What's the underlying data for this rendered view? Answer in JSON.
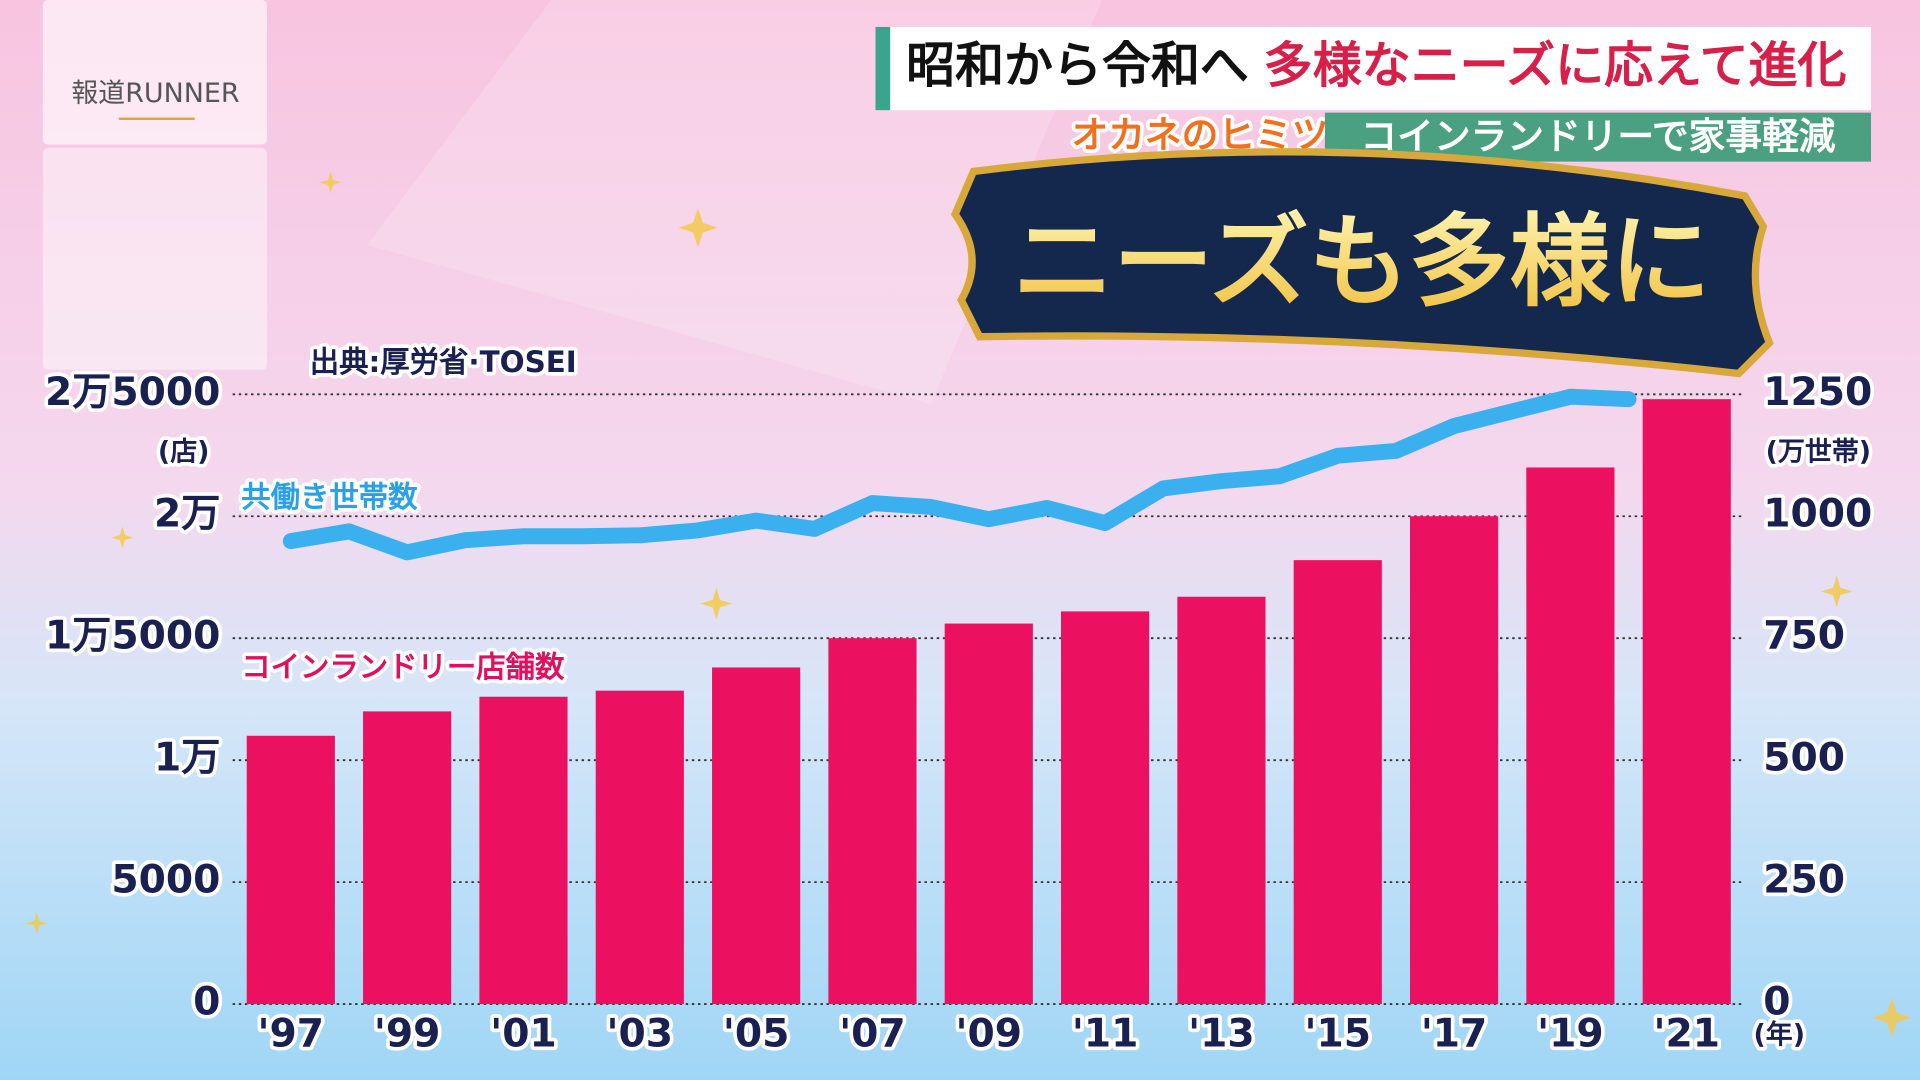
{
  "header": {
    "logo": "報道RUNNER",
    "title_lead": "昭和から令和へ",
    "title_main": "多様なニーズに応えて進化",
    "corner": "オカネのヒミツ",
    "subtitle": "コインランドリーで家事軽減",
    "banner": "ニーズも多様に"
  },
  "chart_data": {
    "type": "bar",
    "source": "出典:厚労省·TOSEI",
    "y_unit": "(店)",
    "y2_unit": "(万世帯)",
    "x_unit": "(年)",
    "xlim": [
      1996,
      2022
    ],
    "xticks": [
      {
        "value": 1997,
        "label": "'97"
      },
      {
        "value": 1999,
        "label": "'99"
      },
      {
        "value": 2001,
        "label": "'01"
      },
      {
        "value": 2003,
        "label": "'03"
      },
      {
        "value": 2005,
        "label": "'05"
      },
      {
        "value": 2007,
        "label": "'07"
      },
      {
        "value": 2009,
        "label": "'09"
      },
      {
        "value": 2011,
        "label": "'11"
      },
      {
        "value": 2013,
        "label": "'13"
      },
      {
        "value": 2015,
        "label": "'15"
      },
      {
        "value": 2017,
        "label": "'17"
      },
      {
        "value": 2019,
        "label": "'19"
      },
      {
        "value": 2021,
        "label": "'21"
      }
    ],
    "ylim": [
      0,
      25000
    ],
    "yticks": [
      0,
      5000,
      {
        "value": 10000,
        "label": "1万"
      },
      {
        "value": 15000,
        "label": "1万5000"
      },
      {
        "value": 20000,
        "label": "2万"
      },
      {
        "value": 25000,
        "label": "2万5000"
      }
    ],
    "y2lim": [
      0,
      1250
    ],
    "y2ticks": [
      0,
      250,
      500,
      750,
      1000,
      1250
    ],
    "grid": true,
    "series": [
      {
        "name": "コインランドリー店舗数",
        "type": "bar",
        "color": "#ec1060",
        "x": [
          1997,
          1999,
          2001,
          2003,
          2005,
          2007,
          2009,
          2011,
          2013,
          2015,
          2017,
          2019,
          2021
        ],
        "values": [
          11000,
          12000,
          12600,
          12850,
          13800,
          15000,
          15600,
          16100,
          16700,
          18200,
          20000,
          22000,
          24800
        ]
      },
      {
        "name": "共働き世帯数",
        "type": "line",
        "axis": "y2",
        "color": "#3bb0ee",
        "x": [
          1997,
          1998,
          1999,
          2000,
          2001,
          2002,
          2003,
          2004,
          2005,
          2006,
          2007,
          2008,
          2009,
          2010,
          2011,
          2012,
          2013,
          2014,
          2015,
          2016,
          2017,
          2018,
          2019,
          2020
        ],
        "values": [
          949,
          969,
          926,
          951,
          959,
          959,
          961,
          971,
          991,
          974,
          1027,
          1019,
          994,
          1017,
          986,
          1057,
          1072,
          1082,
          1124,
          1134,
          1185,
          1215,
          1245,
          1240
        ]
      }
    ]
  }
}
